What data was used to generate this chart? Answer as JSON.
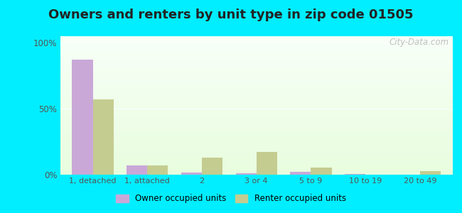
{
  "title": "Owners and renters by unit type in zip code 01505",
  "categories": [
    "1, detached",
    "1, attached",
    "2",
    "3 or 4",
    "5 to 9",
    "10 to 19",
    "20 to 49"
  ],
  "owner_values": [
    87,
    7,
    1.5,
    1,
    2,
    0.4,
    0.2
  ],
  "renter_values": [
    57,
    7,
    13,
    17,
    5.5,
    0.2,
    2.5
  ],
  "owner_color": "#c9a8d8",
  "renter_color": "#c5cc90",
  "background_outer": "#00eeff",
  "yticks": [
    0,
    50,
    100
  ],
  "ytick_labels": [
    "0%",
    "50%",
    "100%"
  ],
  "ylim": [
    0,
    105
  ],
  "bar_width": 0.38,
  "title_fontsize": 13,
  "legend_label_owner": "Owner occupied units",
  "legend_label_renter": "Renter occupied units",
  "watermark": "City-Data.com"
}
